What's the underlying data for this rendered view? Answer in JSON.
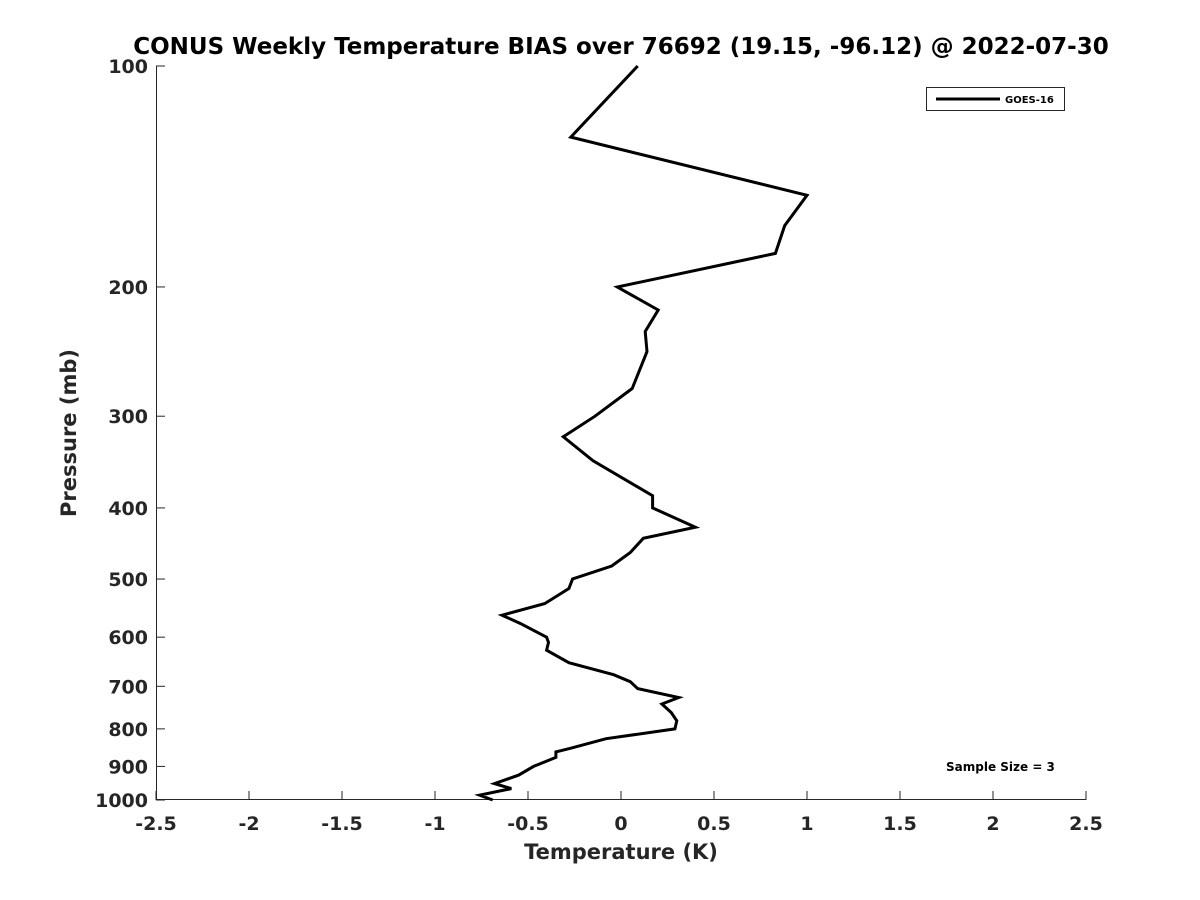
{
  "chart_data": {
    "type": "line",
    "title": "CONUS Weekly Temperature BIAS over 76692 (19.15, -96.12) @ 2022-07-30",
    "xlabel": "Temperature (K)",
    "ylabel": "Pressure (mb)",
    "xlim": [
      -2.5,
      2.5
    ],
    "ylim": [
      100,
      1000
    ],
    "y_scale": "log",
    "y_reversed": true,
    "grid": false,
    "legend_position": "top-right",
    "x_ticks": [
      -2.5,
      -2,
      -1.5,
      -1,
      -0.5,
      0,
      0.5,
      1,
      1.5,
      2,
      2.5
    ],
    "x_tick_labels": [
      "-2.5",
      "-2",
      "-1.5",
      "-1",
      "-0.5",
      "0",
      "0.5",
      "1",
      "1.5",
      "2",
      "2.5"
    ],
    "y_ticks": [
      100,
      200,
      300,
      400,
      500,
      600,
      700,
      800,
      900,
      1000
    ],
    "y_tick_labels": [
      "100",
      "200",
      "300",
      "400",
      "500",
      "600",
      "700",
      "800",
      "900",
      "1000"
    ],
    "annotation": "Sample Size = 3",
    "series": [
      {
        "name": "GOES-16",
        "color": "#000000",
        "points": [
          {
            "t": 0.09,
            "p": 100
          },
          {
            "t": -0.27,
            "p": 125
          },
          {
            "t": 1.0,
            "p": 150
          },
          {
            "t": 0.88,
            "p": 165
          },
          {
            "t": 0.83,
            "p": 180
          },
          {
            "t": -0.02,
            "p": 200
          },
          {
            "t": 0.2,
            "p": 215
          },
          {
            "t": 0.13,
            "p": 230
          },
          {
            "t": 0.14,
            "p": 245
          },
          {
            "t": 0.06,
            "p": 275
          },
          {
            "t": -0.14,
            "p": 300
          },
          {
            "t": -0.31,
            "p": 320
          },
          {
            "t": -0.15,
            "p": 345
          },
          {
            "t": 0.17,
            "p": 385
          },
          {
            "t": 0.17,
            "p": 400
          },
          {
            "t": 0.4,
            "p": 425
          },
          {
            "t": 0.12,
            "p": 440
          },
          {
            "t": 0.05,
            "p": 460
          },
          {
            "t": -0.05,
            "p": 480
          },
          {
            "t": -0.26,
            "p": 500
          },
          {
            "t": -0.28,
            "p": 515
          },
          {
            "t": -0.41,
            "p": 540
          },
          {
            "t": -0.64,
            "p": 560
          },
          {
            "t": -0.54,
            "p": 575
          },
          {
            "t": -0.4,
            "p": 600
          },
          {
            "t": -0.39,
            "p": 610
          },
          {
            "t": -0.4,
            "p": 625
          },
          {
            "t": -0.28,
            "p": 650
          },
          {
            "t": -0.04,
            "p": 675
          },
          {
            "t": 0.05,
            "p": 690
          },
          {
            "t": 0.09,
            "p": 705
          },
          {
            "t": 0.31,
            "p": 725
          },
          {
            "t": 0.22,
            "p": 740
          },
          {
            "t": 0.27,
            "p": 760
          },
          {
            "t": 0.3,
            "p": 780
          },
          {
            "t": 0.29,
            "p": 800
          },
          {
            "t": -0.08,
            "p": 825
          },
          {
            "t": -0.27,
            "p": 850
          },
          {
            "t": -0.35,
            "p": 860
          },
          {
            "t": -0.35,
            "p": 875
          },
          {
            "t": -0.47,
            "p": 900
          },
          {
            "t": -0.55,
            "p": 925
          },
          {
            "t": -0.68,
            "p": 950
          },
          {
            "t": -0.59,
            "p": 965
          },
          {
            "t": -0.76,
            "p": 985
          },
          {
            "t": -0.69,
            "p": 1000
          }
        ]
      }
    ]
  }
}
